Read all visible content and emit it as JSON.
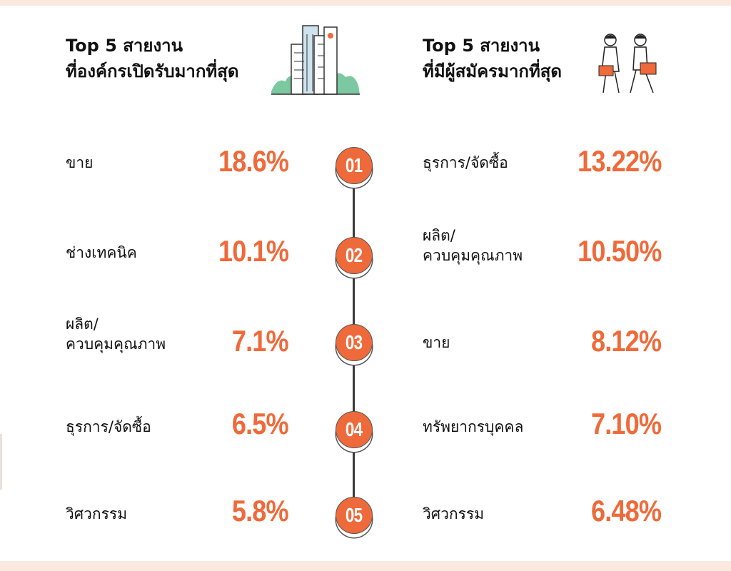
{
  "left": {
    "heading_line1": "Top 5 สายงาน",
    "heading_line2": "ที่องค์กรเปิดรับมากที่สุด",
    "items": [
      {
        "rank": "01",
        "label_lines": [
          "ขาย"
        ],
        "percent": "18.6%"
      },
      {
        "rank": "02",
        "label_lines": [
          "ช่างเทคนิค"
        ],
        "percent": "10.1%"
      },
      {
        "rank": "03",
        "label_lines": [
          "ผลิต/",
          "ควบคุมคุณภาพ"
        ],
        "percent": "7.1%"
      },
      {
        "rank": "04",
        "label_lines": [
          "ธุรการ/จัดซื้อ"
        ],
        "percent": "6.5%"
      },
      {
        "rank": "05",
        "label_lines": [
          "วิศวกรรม"
        ],
        "percent": "5.8%"
      }
    ]
  },
  "right": {
    "heading_line1": "Top 5 สายงาน",
    "heading_line2": "ที่มีผู้สมัครมากที่สุด",
    "items": [
      {
        "label_lines": [
          "ธุรการ/จัดซื้อ"
        ],
        "percent": "13.22%"
      },
      {
        "label_lines": [
          "ผลิต/",
          "ควบคุมคุณภาพ"
        ],
        "percent": "10.50%"
      },
      {
        "label_lines": [
          "ขาย"
        ],
        "percent": "8.12%"
      },
      {
        "label_lines": [
          "ทรัพยากรบุคคล"
        ],
        "percent": "7.10%"
      },
      {
        "label_lines": [
          "วิศวกรรม"
        ],
        "percent": "6.48%"
      }
    ]
  },
  "ranks": [
    "01",
    "02",
    "03",
    "04",
    "05"
  ],
  "icons": {
    "left": "buildings-illustration",
    "right": "job-seekers-illustration"
  },
  "colors": {
    "accent": "#ef6a3a",
    "text": "#111111",
    "background": "#fbe9df"
  }
}
